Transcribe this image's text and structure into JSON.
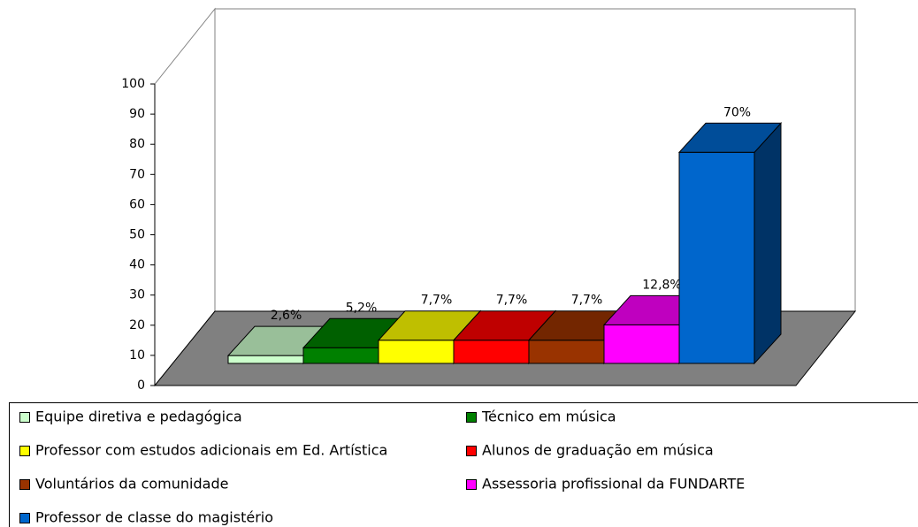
{
  "chart_data": {
    "type": "bar3d",
    "categories": [
      "Equipe diretiva e pedagógica",
      "Técnico em música",
      "Professor com estudos adicionais em Ed. Artística",
      "Alunos de graduação em música",
      "Voluntários da comunidade",
      "Assessoria profissional da FUNDARTE",
      "Professor de classe do magistério"
    ],
    "values": [
      2.6,
      5.2,
      7.7,
      7.7,
      7.7,
      12.8,
      70
    ],
    "value_labels": [
      "2,6%",
      "5,2%",
      "7,7%",
      "7,7%",
      "7,7%",
      "12,8%",
      "70%"
    ],
    "colors": [
      "#ccffcc",
      "#008000",
      "#ffff00",
      "#ff0000",
      "#993300",
      "#ff00ff",
      "#0066cc"
    ],
    "ylim": [
      0,
      100
    ],
    "yticks": [
      0,
      10,
      20,
      30,
      40,
      50,
      60,
      70,
      80,
      90,
      100
    ],
    "legend": "bottom"
  }
}
